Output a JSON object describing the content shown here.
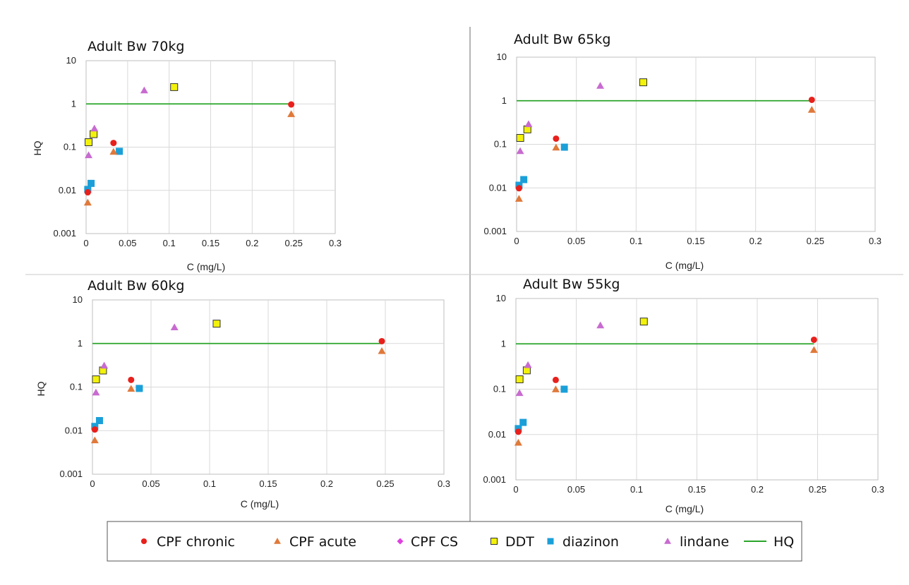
{
  "colors": {
    "cpf_chronic": "#e8201c",
    "cpf_acute": "#e0793a",
    "cpf_cs": "#e040e0",
    "ddt": "#f2f20c",
    "diazinon": "#1b9fd8",
    "lindane": "#c86bd0",
    "hq": "#2aa52a"
  },
  "legend": {
    "items": [
      {
        "key": "cpf_chronic",
        "label": "CPF chronic",
        "marker": "circle"
      },
      {
        "key": "cpf_acute",
        "label": "CPF acute",
        "marker": "triangle"
      },
      {
        "key": "cpf_cs",
        "label": "CPF CS",
        "marker": "diamond"
      },
      {
        "key": "ddt",
        "label": "DDT",
        "marker": "square-outlined"
      },
      {
        "key": "diazinon",
        "label": "diazinon",
        "marker": "square"
      },
      {
        "key": "lindane",
        "label": "lindane",
        "marker": "triangle"
      },
      {
        "key": "hq",
        "label": "HQ",
        "marker": "line"
      }
    ]
  },
  "chart_data": [
    {
      "type": "scatter",
      "title": "Adult Bw 70kg",
      "xlabel": "C (mg/L)",
      "ylabel": "HQ",
      "xlim": [
        0,
        0.3
      ],
      "ylim": [
        0.001,
        10
      ],
      "yscale": "log",
      "x_ticks": [
        "0",
        "0.05",
        "0.1",
        "0.15",
        "0.2",
        "0.25",
        "0.3"
      ],
      "y_ticks": [
        "0.001",
        "0.01",
        "0.1",
        "1",
        "10"
      ],
      "grid": true,
      "series": [
        {
          "key": "cpf_chronic",
          "points": [
            {
              "x": 0.002,
              "y": 0.009
            },
            {
              "x": 0.033,
              "y": 0.125
            },
            {
              "x": 0.247,
              "y": 0.97
            }
          ]
        },
        {
          "key": "cpf_acute",
          "points": [
            {
              "x": 0.002,
              "y": 0.0052
            },
            {
              "x": 0.033,
              "y": 0.078
            },
            {
              "x": 0.247,
              "y": 0.58
            }
          ]
        },
        {
          "key": "cpf_cs",
          "points": []
        },
        {
          "key": "ddt",
          "points": [
            {
              "x": 0.003,
              "y": 0.13
            },
            {
              "x": 0.009,
              "y": 0.2
            },
            {
              "x": 0.106,
              "y": 2.45
            }
          ]
        },
        {
          "key": "diazinon",
          "points": [
            {
              "x": 0.002,
              "y": 0.0105
            },
            {
              "x": 0.006,
              "y": 0.0145
            },
            {
              "x": 0.04,
              "y": 0.08
            }
          ]
        },
        {
          "key": "lindane",
          "points": [
            {
              "x": 0.003,
              "y": 0.065
            },
            {
              "x": 0.01,
              "y": 0.27
            },
            {
              "x": 0.07,
              "y": 2.05
            }
          ]
        },
        {
          "key": "hq",
          "line": {
            "x0": 0,
            "x1": 0.247,
            "y": 1
          }
        }
      ]
    },
    {
      "type": "scatter",
      "title": "Adult Bw 65kg",
      "xlabel": "C (mg/L)",
      "ylabel": "",
      "xlim": [
        0,
        0.3
      ],
      "ylim": [
        0.001,
        10
      ],
      "yscale": "log",
      "x_ticks": [
        "0",
        "0.05",
        "0.1",
        "0.15",
        "0.2",
        "0.25",
        "0.3"
      ],
      "y_ticks": [
        "0.001",
        "0.01",
        "0.1",
        "1",
        "10"
      ],
      "grid": true,
      "series": [
        {
          "key": "cpf_chronic",
          "points": [
            {
              "x": 0.002,
              "y": 0.0098
            },
            {
              "x": 0.033,
              "y": 0.135
            },
            {
              "x": 0.247,
              "y": 1.05
            }
          ]
        },
        {
          "key": "cpf_acute",
          "points": [
            {
              "x": 0.002,
              "y": 0.0056
            },
            {
              "x": 0.033,
              "y": 0.084
            },
            {
              "x": 0.247,
              "y": 0.62
            }
          ]
        },
        {
          "key": "cpf_cs",
          "points": []
        },
        {
          "key": "ddt",
          "points": [
            {
              "x": 0.003,
              "y": 0.14
            },
            {
              "x": 0.009,
              "y": 0.22
            },
            {
              "x": 0.106,
              "y": 2.65
            }
          ]
        },
        {
          "key": "diazinon",
          "points": [
            {
              "x": 0.002,
              "y": 0.0115
            },
            {
              "x": 0.006,
              "y": 0.0155
            },
            {
              "x": 0.04,
              "y": 0.086
            }
          ]
        },
        {
          "key": "lindane",
          "points": [
            {
              "x": 0.003,
              "y": 0.07
            },
            {
              "x": 0.01,
              "y": 0.29
            },
            {
              "x": 0.07,
              "y": 2.2
            }
          ]
        },
        {
          "key": "hq",
          "line": {
            "x0": 0,
            "x1": 0.247,
            "y": 1
          }
        }
      ]
    },
    {
      "type": "scatter",
      "title": "Adult Bw 60kg",
      "xlabel": "C (mg/L)",
      "ylabel": "HQ",
      "xlim": [
        0,
        0.3
      ],
      "ylim": [
        0.001,
        10
      ],
      "yscale": "log",
      "x_ticks": [
        "0",
        "0.05",
        "0.1",
        "0.15",
        "0.2",
        "0.25",
        "0.3"
      ],
      "y_ticks": [
        "0.001",
        "0.01",
        "0.1",
        "1",
        "10"
      ],
      "grid": true,
      "series": [
        {
          "key": "cpf_chronic",
          "points": [
            {
              "x": 0.002,
              "y": 0.0106
            },
            {
              "x": 0.033,
              "y": 0.146
            },
            {
              "x": 0.247,
              "y": 1.13
            }
          ]
        },
        {
          "key": "cpf_acute",
          "points": [
            {
              "x": 0.002,
              "y": 0.006
            },
            {
              "x": 0.033,
              "y": 0.091
            },
            {
              "x": 0.247,
              "y": 0.67
            }
          ]
        },
        {
          "key": "cpf_cs",
          "points": []
        },
        {
          "key": "ddt",
          "points": [
            {
              "x": 0.003,
              "y": 0.15
            },
            {
              "x": 0.009,
              "y": 0.24
            },
            {
              "x": 0.106,
              "y": 2.85
            }
          ]
        },
        {
          "key": "diazinon",
          "points": [
            {
              "x": 0.002,
              "y": 0.0125
            },
            {
              "x": 0.006,
              "y": 0.017
            },
            {
              "x": 0.04,
              "y": 0.093
            }
          ]
        },
        {
          "key": "lindane",
          "points": [
            {
              "x": 0.003,
              "y": 0.075
            },
            {
              "x": 0.01,
              "y": 0.31
            },
            {
              "x": 0.07,
              "y": 2.35
            }
          ]
        },
        {
          "key": "hq",
          "line": {
            "x0": 0,
            "x1": 0.247,
            "y": 1
          }
        }
      ]
    },
    {
      "type": "scatter",
      "title": "Adult Bw 55kg",
      "xlabel": "C (mg/L)",
      "ylabel": "",
      "xlim": [
        0,
        0.3
      ],
      "ylim": [
        0.001,
        10
      ],
      "yscale": "log",
      "x_ticks": [
        "0",
        "0.05",
        "0.1",
        "0.15",
        "0.2",
        "0.25",
        "0.3"
      ],
      "y_ticks": [
        "0.001",
        "0.01",
        "0.1",
        "1",
        "10"
      ],
      "grid": true,
      "series": [
        {
          "key": "cpf_chronic",
          "points": [
            {
              "x": 0.002,
              "y": 0.0115
            },
            {
              "x": 0.033,
              "y": 0.16
            },
            {
              "x": 0.247,
              "y": 1.23
            }
          ]
        },
        {
          "key": "cpf_acute",
          "points": [
            {
              "x": 0.002,
              "y": 0.0066
            },
            {
              "x": 0.033,
              "y": 0.099
            },
            {
              "x": 0.247,
              "y": 0.73
            }
          ]
        },
        {
          "key": "cpf_cs",
          "points": []
        },
        {
          "key": "ddt",
          "points": [
            {
              "x": 0.003,
              "y": 0.165
            },
            {
              "x": 0.009,
              "y": 0.26
            },
            {
              "x": 0.106,
              "y": 3.1
            }
          ]
        },
        {
          "key": "diazinon",
          "points": [
            {
              "x": 0.002,
              "y": 0.0135
            },
            {
              "x": 0.006,
              "y": 0.0185
            },
            {
              "x": 0.04,
              "y": 0.1
            }
          ]
        },
        {
          "key": "lindane",
          "points": [
            {
              "x": 0.003,
              "y": 0.082
            },
            {
              "x": 0.01,
              "y": 0.34
            },
            {
              "x": 0.07,
              "y": 2.55
            }
          ]
        },
        {
          "key": "hq",
          "line": {
            "x0": 0,
            "x1": 0.247,
            "y": 1
          }
        }
      ]
    }
  ]
}
